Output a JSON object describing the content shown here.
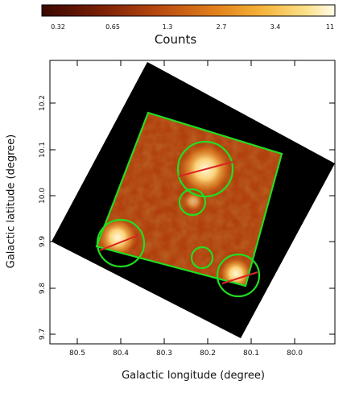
{
  "colorbar": {
    "title": "Counts",
    "ticks": [
      "0.32",
      "0.65",
      "1.3",
      "2.7",
      "3.4",
      "11"
    ],
    "colors": [
      "#3a0800",
      "#7a1f05",
      "#b84a10",
      "#e2821c",
      "#f5b33a",
      "#fbe089",
      "#fffbea"
    ]
  },
  "axes": {
    "xlabel": "Galactic longitude (degree)",
    "ylabel": "Galactic latitude (degree)",
    "xticks": [
      "80.5",
      "80.4",
      "80.3",
      "80.2",
      "80.1",
      "80.0"
    ],
    "yticks": [
      "10.2",
      "10.1",
      "10.0",
      "9.9",
      "9.8",
      "9.7"
    ]
  },
  "overlay": {
    "region_color": "#22dd22",
    "line_color": "#dd2222",
    "background": "#000000"
  }
}
